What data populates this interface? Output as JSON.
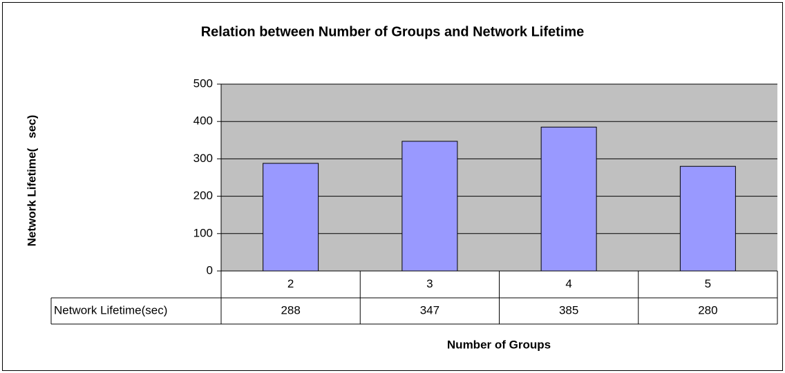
{
  "chart_data": {
    "type": "bar",
    "title": "Relation between Number of Groups and Network Lifetime",
    "x_label": "Number of Groups",
    "y_label": "Network Lifetime(   sec)",
    "categories": [
      "2",
      "3",
      "4",
      "5"
    ],
    "series": [
      {
        "name": "Network Lifetime(sec)",
        "color": "#9999ff",
        "values": [
          288,
          347,
          385,
          280
        ]
      }
    ],
    "ylim": [
      0,
      500
    ],
    "yticks": [
      0,
      100,
      200,
      300,
      400,
      500
    ],
    "grid": true,
    "data_table": true
  }
}
